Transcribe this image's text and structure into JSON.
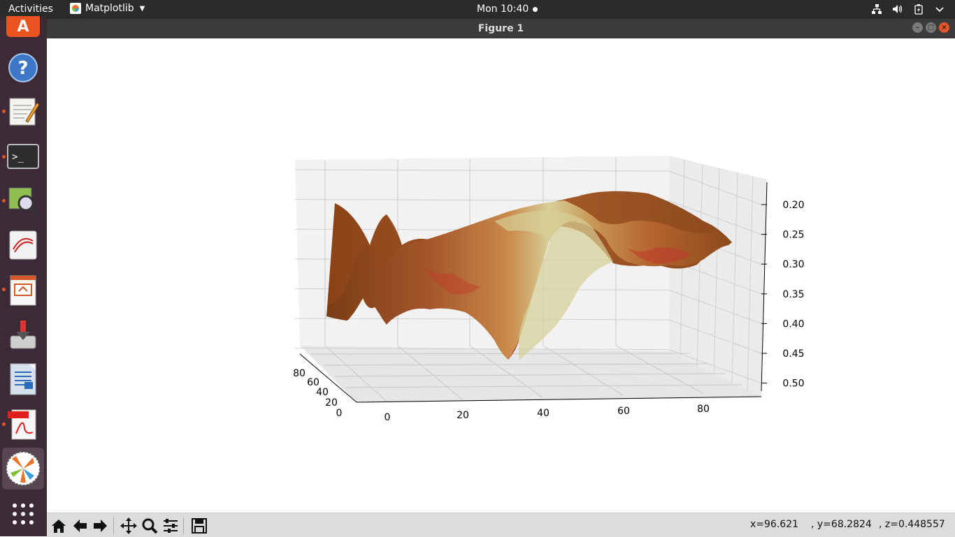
{
  "topbar": {
    "activities": "Activities",
    "app_name": "Matplotlib",
    "clock": "Mon 10:40"
  },
  "window": {
    "title": "Figure 1"
  },
  "dock": {
    "items": [
      "ubuntu-software",
      "help",
      "text-editor",
      "terminal",
      "image-viewer",
      "document-viewer",
      "impress",
      "installer",
      "writer",
      "pdf-viewer",
      "matplotlib",
      "show-applications"
    ]
  },
  "chart_data": {
    "type": "surface3d",
    "title": "",
    "x_ticks": [
      "0",
      "20",
      "40",
      "60",
      "80"
    ],
    "y_ticks": [
      "0",
      "20",
      "40",
      "60",
      "80"
    ],
    "z_ticks": [
      "0.20",
      "0.25",
      "0.30",
      "0.35",
      "0.40",
      "0.45",
      "0.50"
    ],
    "z_inverted": true,
    "grid": true,
    "colors": {
      "surface_dark": "#8c4a1c",
      "surface_mid": "#c0783a",
      "surface_light": "#d9d19a",
      "surface_red": "#c0392b"
    }
  },
  "toolbar": {
    "buttons": [
      "home",
      "back",
      "forward",
      "pan",
      "zoom",
      "configure",
      "save"
    ],
    "coords": {
      "x": "x=96.621",
      "y": ", y=68.2824",
      "z": ", z=0.448557"
    }
  }
}
